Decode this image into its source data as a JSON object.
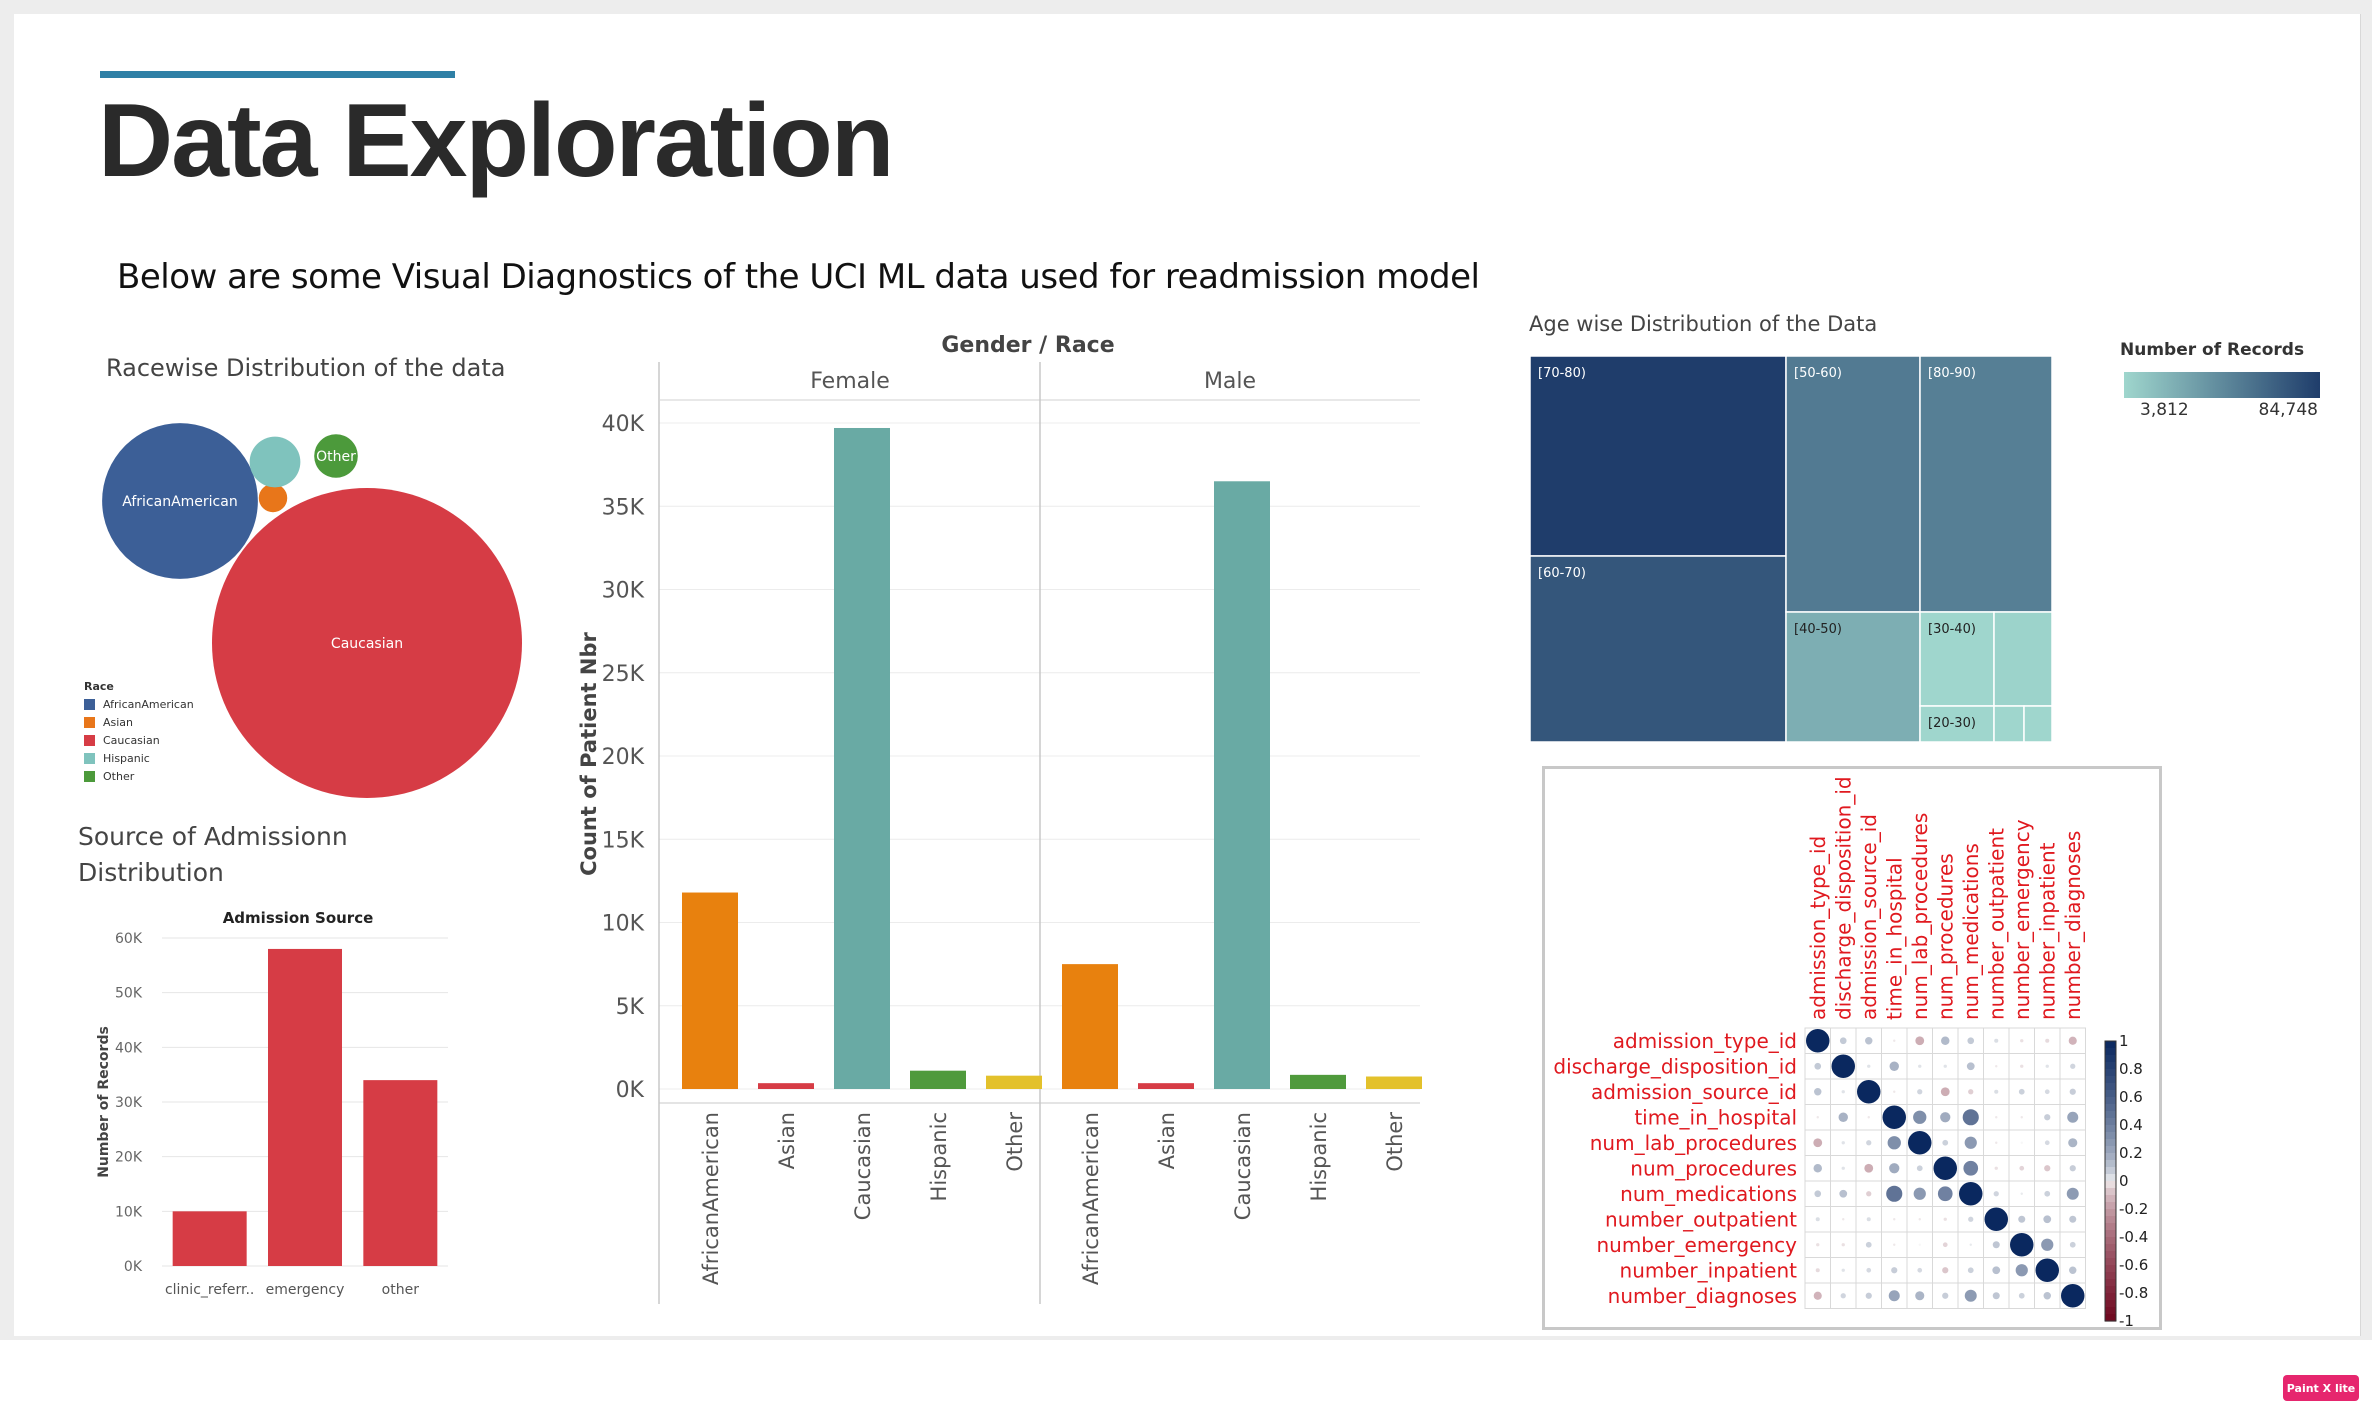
{
  "slide": {
    "title": "Data Exploration",
    "subtitle": "Below are some Visual Diagnostics of the UCI ML data used for readmission model"
  },
  "colors": {
    "title_rule": "#2f80a6",
    "race": {
      "AfricanAmerican": "#3c5f97",
      "Asian": "#e8761a",
      "Caucasian": "#d63c45",
      "Hispanic": "#7fc3bd",
      "Other": "#4c9a3b"
    },
    "gender_race": {
      "AfricanAmerican": "#e8810e",
      "Asian": "#d63c45",
      "Caucasian": "#69aaa4",
      "Hispanic": "#4f9a3c",
      "Other": "#e3c12b"
    },
    "admission_bars": "#d63c45",
    "treemap_low": "#9fd6cd",
    "treemap_high": "#1f3d6b"
  },
  "race_panel": {
    "title": "Racewise Distribution of the data",
    "bubble_labels": {
      "AfricanAmerican": "AfricanAmerican",
      "Caucasian": "Caucasian",
      "Other": "Other"
    },
    "legend_title": "Race",
    "legend": [
      "AfricanAmerican",
      "Asian",
      "Caucasian",
      "Hispanic",
      "Other"
    ]
  },
  "admission_panel": {
    "title_line1": "Source of Admissionn",
    "title_line2": "Distribution"
  },
  "treemap_panel": {
    "title": "Age wise Distribution of the Data",
    "legend_title": "Number of Records",
    "legend_min": "3,812",
    "legend_max": "84,748",
    "labels": [
      "[70-80)",
      "[60-70)",
      "[50-60)",
      "[80-90)",
      "[40-50)",
      "[30-40)",
      "[20-30)"
    ]
  },
  "chart_data": [
    {
      "type": "pie",
      "chart_style": "packed-bubble",
      "categories": [
        "AfricanAmerican",
        "Asian",
        "Caucasian",
        "Hispanic",
        "Other"
      ],
      "values": [
        19210,
        641,
        76099,
        2037,
        1506
      ],
      "legend": "left"
    },
    {
      "type": "bar",
      "title": "Admission Source",
      "categories": [
        "clinic_referr..",
        "emergency",
        "other"
      ],
      "values": [
        10000,
        58000,
        34000
      ],
      "xlabel": "",
      "ylabel": "Number of Records",
      "ylim": [
        0,
        60000
      ],
      "yticks": [
        0,
        10000,
        20000,
        30000,
        40000,
        50000,
        60000
      ],
      "ytick_labels": [
        "0K",
        "10K",
        "20K",
        "30K",
        "40K",
        "50K",
        "60K"
      ],
      "grid": true
    },
    {
      "type": "bar",
      "title": "Gender / Race",
      "panels": [
        "Female",
        "Male"
      ],
      "categories": [
        "AfricanAmerican",
        "Asian",
        "Caucasian",
        "Hispanic",
        "Other"
      ],
      "series": [
        {
          "values": [
            11800,
            350,
            39700,
            1100,
            800
          ]
        },
        {
          "values": [
            7500,
            350,
            36500,
            850,
            750
          ]
        }
      ],
      "ylabel": "Count of Patient Nbr",
      "ylim": [
        0,
        40000
      ],
      "yticks": [
        0,
        5000,
        10000,
        15000,
        20000,
        25000,
        30000,
        35000,
        40000
      ],
      "ytick_labels": [
        "0K",
        "5K",
        "10K",
        "15K",
        "20K",
        "25K",
        "30K",
        "35K",
        "40K"
      ],
      "grid": true
    },
    {
      "type": "heatmap",
      "chart_style": "treemap",
      "categories": [
        "[70-80)",
        "[60-70)",
        "[50-60)",
        "[80-90)",
        "[40-50)",
        "[30-40)",
        "[20-30)"
      ],
      "values": [
        26068,
        22483,
        17256,
        16434,
        9685,
        3775,
        1657
      ]
    },
    {
      "type": "heatmap",
      "chart_style": "correlation-matrix",
      "variables": [
        "admission_type_id",
        "discharge_disposition_id",
        "admission_source_id",
        "time_in_hospital",
        "num_lab_procedures",
        "num_procedures",
        "num_medications",
        "number_outpatient",
        "number_emergency",
        "number_inpatient",
        "number_diagnoses"
      ],
      "matrix": [
        [
          1.0,
          0.08,
          0.1,
          -0.01,
          -0.14,
          0.13,
          0.08,
          0.03,
          -0.02,
          -0.03,
          -0.12
        ],
        [
          0.08,
          1.0,
          0.02,
          0.16,
          0.02,
          0.02,
          0.11,
          -0.01,
          -0.02,
          0.02,
          0.05
        ],
        [
          0.1,
          0.02,
          1.0,
          -0.01,
          0.05,
          -0.14,
          -0.05,
          0.03,
          0.06,
          0.04,
          0.07
        ],
        [
          -0.01,
          0.16,
          -0.01,
          1.0,
          0.32,
          0.19,
          0.47,
          -0.01,
          -0.01,
          0.07,
          0.22
        ],
        [
          -0.14,
          0.02,
          0.05,
          0.32,
          1.0,
          0.06,
          0.27,
          -0.01,
          0.0,
          0.04,
          0.15
        ],
        [
          0.13,
          0.02,
          -0.14,
          0.19,
          0.06,
          1.0,
          0.39,
          -0.02,
          -0.04,
          -0.07,
          0.07
        ],
        [
          0.08,
          0.11,
          -0.05,
          0.47,
          0.27,
          0.39,
          1.0,
          0.05,
          0.01,
          0.06,
          0.26
        ],
        [
          0.03,
          -0.01,
          0.03,
          -0.01,
          -0.01,
          -0.02,
          0.05,
          1.0,
          0.09,
          0.11,
          0.09
        ],
        [
          -0.02,
          -0.02,
          0.06,
          -0.01,
          0.0,
          -0.04,
          0.01,
          0.09,
          1.0,
          0.27,
          0.06
        ],
        [
          -0.03,
          0.02,
          0.04,
          0.07,
          0.04,
          -0.07,
          0.06,
          0.11,
          0.27,
          1.0,
          0.1
        ],
        [
          -0.12,
          0.05,
          0.07,
          0.22,
          0.15,
          0.07,
          0.26,
          0.09,
          0.06,
          0.1,
          1.0
        ]
      ],
      "colorbar_ticks": [
        "1",
        "0.8",
        "0.6",
        "0.4",
        "0.2",
        "0",
        "-0.2",
        "-0.4",
        "-0.6",
        "-0.8",
        "-1"
      ],
      "label_color": "#e0191f"
    }
  ],
  "app_badge": {
    "label": "Paint X lite"
  }
}
